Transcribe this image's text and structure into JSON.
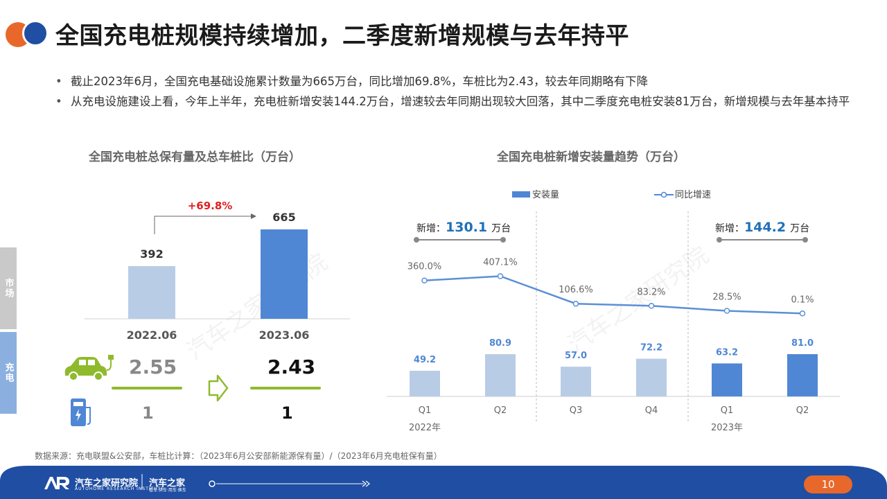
{
  "title": "全国充电桩规模持续增加，二季度新增规模与去年持平",
  "bullets": [
    "截止2023年6月，全国充电基础设施累计数量为665万台，同比增加69.8%，车桩比为2.43，较去年同期略有下降",
    "从充电设施建设上看，今年上半年，充电桩新增安装144.2万台，增速较去年同期出现较大回落，其中二季度充电桩安装81万台，新增规模与去年基本持平"
  ],
  "side_tabs": {
    "market": "市场",
    "charging": "充电"
  },
  "watermark": "汽车之家研究院",
  "colors": {
    "accent_orange": "#e8682b",
    "brand_blue": "#1f4ea3",
    "bar_light": "#b8cce6",
    "bar_dark": "#4f87d4",
    "growth_red": "#e02020",
    "green": "#8fba2c",
    "line_blue": "#5b8fd6"
  },
  "left_chart": {
    "title": "全国充电桩总保有量及总车桩比（万台）",
    "growth_label": "+69.8%",
    "icons": [
      "car-icon",
      "charger-icon",
      "arrow-right-icon"
    ]
  },
  "right_chart": {
    "title": "全国充电桩新增安装量趋势（万台）",
    "legend_bar": "安装量",
    "legend_line": "同比增速",
    "annotations": [
      {
        "prefix": "新增：",
        "value": "130.1",
        "unit": "万台"
      },
      {
        "prefix": "新增：",
        "value": "144.2",
        "unit": "万台"
      }
    ],
    "years": [
      "2022年",
      "2023年"
    ]
  },
  "chart_data": [
    {
      "type": "bar",
      "title": "全国充电桩总保有量及总车桩比（万台）",
      "categories": [
        "2022.06",
        "2023.06"
      ],
      "values": [
        392,
        665
      ],
      "value_labels": [
        "392",
        "665"
      ],
      "ratio_labels": [
        "2.55",
        "2.43"
      ],
      "ratio_base_labels": [
        "1",
        "1"
      ],
      "growth": "+69.8%"
    },
    {
      "type": "bar",
      "title": "全国充电桩新增安装量趋势（万台）",
      "categories": [
        "Q1",
        "Q2",
        "Q3",
        "Q4",
        "Q1",
        "Q2"
      ],
      "series": [
        {
          "name": "安装量",
          "type": "bar",
          "values": [
            49.2,
            80.9,
            57.0,
            72.2,
            63.2,
            81.0
          ],
          "labels": [
            "49.2",
            "80.9",
            "57.0",
            "72.2",
            "63.2",
            "81.0"
          ]
        },
        {
          "name": "同比增速",
          "type": "line",
          "values": [
            360.0,
            407.1,
            106.6,
            83.2,
            28.5,
            0.1
          ],
          "labels": [
            "360.0%",
            "407.1%",
            "106.6%",
            "83.2%",
            "28.5%",
            "0.1%"
          ]
        }
      ]
    }
  ],
  "source": "数据来源：充电联盟&公安部，车桩比计算：（2023年6月公安部新能源保有量）/（2023年6月充电桩保有量）",
  "footer": {
    "brand_name": "汽车之家研究院",
    "brand_sub": "AUTOHOME RESEARCH INSTITUTE",
    "brand2": "汽车之家",
    "brand2_sub": "看车·买车·用车·换车",
    "page": "10"
  }
}
